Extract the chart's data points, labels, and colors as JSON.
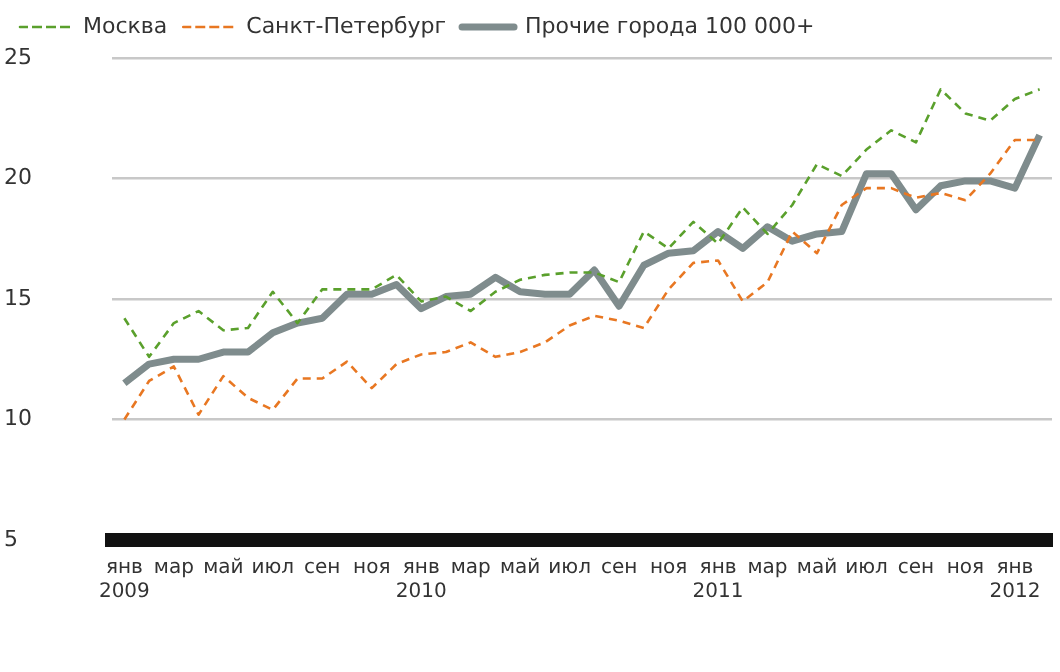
{
  "chart_data": {
    "type": "line",
    "categories": [
      "янв 2009",
      null,
      "мар",
      null,
      "май",
      null,
      "июл",
      null,
      "сен",
      null,
      "ноя",
      null,
      "янв 2010",
      null,
      "мар",
      null,
      "май",
      null,
      "июл",
      null,
      "сен",
      null,
      "ноя",
      null,
      "янв 2011",
      null,
      "мар",
      null,
      "май",
      null,
      "июл",
      null,
      "сен",
      null,
      "ноя",
      null,
      "янв 2012",
      null
    ],
    "series": [
      {
        "name": "Москва",
        "color": "#5aa02c",
        "line_style": "dashed",
        "values": [
          14.2,
          12.6,
          14.0,
          14.5,
          13.7,
          13.8,
          15.3,
          14.0,
          15.4,
          15.4,
          15.4,
          16.0,
          14.9,
          15.1,
          14.5,
          15.3,
          15.8,
          16.0,
          16.1,
          16.1,
          15.7,
          17.8,
          17.1,
          18.2,
          17.3,
          18.8,
          17.7,
          18.9,
          20.6,
          20.1,
          21.2,
          22.0,
          21.5,
          23.7,
          22.7,
          22.4,
          23.3,
          23.7
        ]
      },
      {
        "name": "Санкт-Петербург",
        "color": "#e87722",
        "line_style": "dashed",
        "values": [
          10.0,
          11.6,
          12.2,
          10.2,
          11.8,
          10.9,
          10.4,
          11.7,
          11.7,
          12.4,
          11.3,
          12.3,
          12.7,
          12.8,
          13.2,
          12.6,
          12.8,
          13.2,
          13.9,
          14.3,
          14.1,
          13.8,
          15.4,
          16.5,
          16.6,
          14.9,
          15.7,
          17.8,
          16.9,
          18.9,
          19.6,
          19.6,
          19.2,
          19.4,
          19.1,
          20.2,
          21.6,
          21.6
        ]
      },
      {
        "name": "Прочие города 100 000+",
        "color": "#7f8c8d",
        "line_style": "solid",
        "values": [
          11.5,
          12.3,
          12.5,
          12.5,
          12.8,
          12.8,
          13.6,
          14.0,
          14.2,
          15.2,
          15.2,
          15.6,
          14.6,
          15.1,
          15.2,
          15.9,
          15.3,
          15.2,
          15.2,
          16.2,
          14.7,
          16.4,
          16.9,
          17.0,
          17.8,
          17.1,
          18.0,
          17.4,
          17.7,
          17.8,
          20.2,
          20.2,
          18.7,
          19.7,
          19.9,
          19.9,
          19.6,
          21.8
        ]
      }
    ],
    "ylim": [
      5,
      25
    ],
    "yticks": [
      5,
      10,
      15,
      20,
      25
    ],
    "grid": "y",
    "legend": "top left",
    "marker": "none"
  }
}
